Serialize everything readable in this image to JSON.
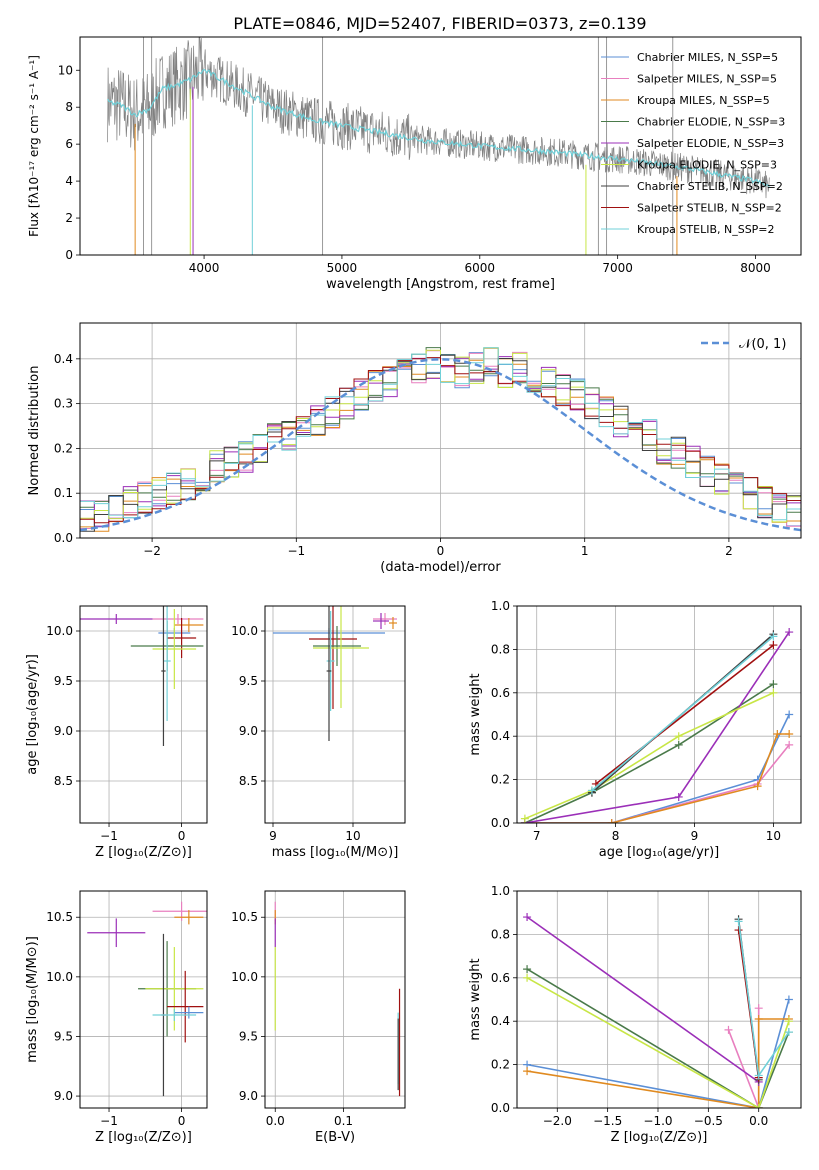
{
  "figure": {
    "title": "PLATE=0846, MJD=52407, FIBERID=0373, z=0.139"
  },
  "colors": {
    "grid": "#b0b0b0",
    "observed": "#808080",
    "model": "#70d0d8",
    "normal": "#5b8fd6"
  },
  "chart_data": [
    {
      "id": "spectrum",
      "type": "line",
      "xlabel": "wavelength [Angstrom, rest frame]",
      "ylabel": "Flux [fλ10⁻¹⁷ erg cm⁻² s⁻¹ A⁻¹]",
      "xlim": [
        3100,
        8330
      ],
      "ylim": [
        0,
        11.8
      ],
      "xticks": [
        "4000",
        "5000",
        "6000",
        "7000",
        "8000"
      ],
      "yticks": [
        "0",
        "2",
        "4",
        "6",
        "8",
        "10"
      ],
      "legend_position": "top-right",
      "series": [
        {
          "name": "Chabrier MILES, N_SSP=5",
          "color": "#5b8fd6"
        },
        {
          "name": "Salpeter MILES, N_SSP=5",
          "color": "#e87fbf"
        },
        {
          "name": "Kroupa MILES, N_SSP=5",
          "color": "#e08a20"
        },
        {
          "name": "Chabrier ELODIE, N_SSP=3",
          "color": "#4a7a4a"
        },
        {
          "name": "Salpeter ELODIE, N_SSP=3",
          "color": "#9b2fb8"
        },
        {
          "name": "Kroupa ELODIE, N_SSP=3",
          "color": "#c8e646"
        },
        {
          "name": "Chabrier STELIB, N_SSP=2",
          "color": "#404040"
        },
        {
          "name": "Salpeter STELIB, N_SSP=2",
          "color": "#a01010"
        },
        {
          "name": "Kroupa STELIB, N_SSP=2",
          "color": "#70d0d8"
        }
      ],
      "model_trend": {
        "x": [
          3300,
          3400,
          3500,
          3600,
          3700,
          3800,
          3900,
          4000,
          4100,
          4300,
          4500,
          4800,
          5000,
          5300,
          5600,
          6000,
          6500,
          7000,
          7500,
          8000,
          8100
        ],
        "y": [
          8.3,
          8.1,
          7.6,
          7.9,
          9.0,
          9.2,
          9.5,
          10.0,
          9.6,
          8.8,
          8.0,
          7.3,
          7.0,
          6.6,
          6.2,
          5.9,
          5.6,
          5.2,
          4.7,
          4.0,
          3.7
        ]
      }
    },
    {
      "id": "residuals",
      "type": "bar",
      "xlabel": "(data-model)/error",
      "ylabel": "Normed distribution",
      "xlim": [
        -2.5,
        2.5
      ],
      "ylim": [
        0,
        0.48
      ],
      "xticks": [
        "−2",
        "−1",
        "0",
        "1",
        "2"
      ],
      "yticks": [
        "0.0",
        "0.1",
        "0.2",
        "0.3",
        "0.4"
      ],
      "legend_position": "top-right",
      "legend": "𝒩(0, 1)",
      "bin_width": 0.1,
      "bins_start": -2.5,
      "histogram": [
        0.05,
        0.05,
        0.06,
        0.08,
        0.09,
        0.1,
        0.11,
        0.12,
        0.14,
        0.16,
        0.17,
        0.18,
        0.2,
        0.22,
        0.23,
        0.25,
        0.26,
        0.28,
        0.3,
        0.32,
        0.34,
        0.35,
        0.37,
        0.38,
        0.39,
        0.38,
        0.37,
        0.38,
        0.39,
        0.37,
        0.38,
        0.36,
        0.35,
        0.33,
        0.32,
        0.3,
        0.28,
        0.26,
        0.25,
        0.23,
        0.2,
        0.19,
        0.17,
        0.15,
        0.13,
        0.11,
        0.1,
        0.08,
        0.07,
        0.06
      ]
    },
    {
      "id": "age-vs-Z",
      "type": "scatter",
      "xlabel": "Z [log₁₀(Z/Z⊙)]",
      "ylabel": "age  [log₁₀(age/yr)]",
      "xlim": [
        -1.4,
        0.35
      ],
      "ylim": [
        8.08,
        10.25
      ],
      "xticks": [
        "−1",
        "0"
      ],
      "yticks": [
        "8.5",
        "9.0",
        "9.5",
        "10.0"
      ],
      "points": [
        {
          "x": -0.9,
          "y": 10.12,
          "xerr": 0.5,
          "yerr": 0.05,
          "color": "#9b2fb8"
        },
        {
          "x": -0.05,
          "y": 10.12,
          "xerr": 0.35,
          "yerr": 0.05,
          "color": "#e87fbf"
        },
        {
          "x": 0.1,
          "y": 10.06,
          "xerr": 0.2,
          "yerr": 0.07,
          "color": "#e08a20"
        },
        {
          "x": -0.1,
          "y": 9.98,
          "xerr": 0.22,
          "yerr": 0.05,
          "color": "#5b8fd6"
        },
        {
          "x": 0.0,
          "y": 9.93,
          "xerr": 0.2,
          "yerr": 0.2,
          "color": "#a01010"
        },
        {
          "x": -0.2,
          "y": 9.85,
          "xerr": 0.5,
          "yerr": 0.25,
          "color": "#4a7a4a"
        },
        {
          "x": -0.1,
          "y": 9.82,
          "xerr": 0.3,
          "yerr": 0.4,
          "color": "#c8e646"
        },
        {
          "x": -0.2,
          "y": 9.7,
          "xerr": 0.05,
          "yerr": 0.6,
          "color": "#70d0d8"
        },
        {
          "x": -0.25,
          "y": 9.6,
          "xerr": 0.03,
          "yerr": 0.75,
          "color": "#404040"
        }
      ]
    },
    {
      "id": "age-vs-mass",
      "type": "scatter",
      "xlabel": "mass [log₁₀(M/M⊙)]",
      "ylabel": "",
      "xlim": [
        8.9,
        10.65
      ],
      "ylim": [
        8.08,
        10.25
      ],
      "xticks": [
        "9",
        "10"
      ],
      "yticks": [
        "8.5",
        "9.0",
        "9.5",
        "10.0"
      ],
      "points": [
        {
          "x": 10.4,
          "y": 10.12,
          "xerr": 0.15,
          "yerr": 0.06,
          "color": "#e87fbf"
        },
        {
          "x": 10.35,
          "y": 10.1,
          "xerr": 0.1,
          "yerr": 0.08,
          "color": "#9b2fb8"
        },
        {
          "x": 10.5,
          "y": 10.08,
          "xerr": 0.05,
          "yerr": 0.06,
          "color": "#e08a20"
        },
        {
          "x": 9.7,
          "y": 9.98,
          "xerr": 0.7,
          "yerr": 0.05,
          "color": "#5b8fd6"
        },
        {
          "x": 9.75,
          "y": 9.92,
          "xerr": 0.3,
          "yerr": 0.7,
          "color": "#a01010"
        },
        {
          "x": 9.8,
          "y": 9.85,
          "xerr": 0.3,
          "yerr": 0.2,
          "color": "#4a7a4a"
        },
        {
          "x": 9.85,
          "y": 9.83,
          "xerr": 0.35,
          "yerr": 0.6,
          "color": "#c8e646"
        },
        {
          "x": 9.72,
          "y": 9.7,
          "xerr": 0.05,
          "yerr": 0.5,
          "color": "#70d0d8"
        },
        {
          "x": 9.7,
          "y": 9.6,
          "xerr": 0.03,
          "yerr": 0.7,
          "color": "#404040"
        }
      ]
    },
    {
      "id": "weight-vs-age",
      "type": "line",
      "xlabel": "age  [log₁₀(age/yr)]",
      "ylabel": "mass weight",
      "xlim": [
        6.75,
        10.35
      ],
      "ylim": [
        0,
        1
      ],
      "xticks": [
        "7",
        "8",
        "9",
        "10"
      ],
      "yticks": [
        "0.0",
        "0.2",
        "0.4",
        "0.6",
        "0.8",
        "1.0"
      ],
      "series": [
        {
          "color": "#5b8fd6",
          "x": [
            6.85,
            7.95,
            9.8,
            10.2
          ],
          "y": [
            0.0,
            0.0,
            0.2,
            0.5
          ]
        },
        {
          "color": "#e87fbf",
          "x": [
            6.85,
            7.95,
            9.8,
            10.2
          ],
          "y": [
            0.0,
            0.0,
            0.18,
            0.36
          ]
        },
        {
          "color": "#e08a20",
          "x": [
            6.85,
            7.95,
            9.8,
            10.05,
            10.2
          ],
          "y": [
            0.0,
            0.0,
            0.17,
            0.41,
            0.41
          ]
        },
        {
          "color": "#4a7a4a",
          "x": [
            6.85,
            7.7,
            8.8,
            10.0
          ],
          "y": [
            0.0,
            0.14,
            0.36,
            0.64
          ]
        },
        {
          "color": "#9b2fb8",
          "x": [
            6.85,
            8.8,
            10.2
          ],
          "y": [
            0.0,
            0.12,
            0.88
          ]
        },
        {
          "color": "#c8e646",
          "x": [
            6.85,
            7.7,
            8.8,
            10.0
          ],
          "y": [
            0.02,
            0.15,
            0.4,
            0.6
          ]
        },
        {
          "color": "#404040",
          "x": [
            7.7,
            10.0
          ],
          "y": [
            0.14,
            0.87
          ]
        },
        {
          "color": "#a01010",
          "x": [
            7.75,
            10.0
          ],
          "y": [
            0.18,
            0.82
          ]
        },
        {
          "color": "#70d0d8",
          "x": [
            7.7,
            10.0
          ],
          "y": [
            0.15,
            0.86
          ]
        }
      ]
    },
    {
      "id": "mass-vs-Z",
      "type": "scatter",
      "xlabel": "Z [log₁₀(Z/Z⊙)]",
      "ylabel": "mass [log₁₀(M/M⊙)]",
      "xlim": [
        -1.4,
        0.35
      ],
      "ylim": [
        8.9,
        10.72
      ],
      "xticks": [
        "−1",
        "0"
      ],
      "yticks": [
        "9.0",
        "9.5",
        "10.0",
        "10.5"
      ],
      "points": [
        {
          "x": 0.0,
          "y": 10.55,
          "xerr": 0.4,
          "yerr": 0.08,
          "color": "#e87fbf"
        },
        {
          "x": 0.1,
          "y": 10.5,
          "xerr": 0.2,
          "yerr": 0.06,
          "color": "#e08a20"
        },
        {
          "x": -0.9,
          "y": 10.37,
          "xerr": 0.4,
          "yerr": 0.12,
          "color": "#9b2fb8"
        },
        {
          "x": -0.2,
          "y": 9.9,
          "xerr": 0.4,
          "yerr": 0.4,
          "color": "#4a7a4a"
        },
        {
          "x": -0.1,
          "y": 9.9,
          "xerr": 0.4,
          "yerr": 0.35,
          "color": "#c8e646"
        },
        {
          "x": 0.05,
          "y": 9.75,
          "xerr": 0.25,
          "yerr": 0.3,
          "color": "#a01010"
        },
        {
          "x": 0.1,
          "y": 9.7,
          "xerr": 0.2,
          "yerr": 0.05,
          "color": "#5b8fd6"
        },
        {
          "x": -0.25,
          "y": 9.68,
          "xerr": 0.03,
          "yerr": 0.68,
          "color": "#404040"
        },
        {
          "x": -0.1,
          "y": 9.68,
          "xerr": 0.3,
          "yerr": 0.05,
          "color": "#70d0d8"
        }
      ]
    },
    {
      "id": "mass-vs-EBV",
      "type": "scatter",
      "xlabel": "E(B-V)",
      "ylabel": "",
      "xlim": [
        -0.015,
        0.19
      ],
      "ylim": [
        8.9,
        10.72
      ],
      "xticks": [
        "0.0",
        "0.1"
      ],
      "yticks": [
        "9.0",
        "9.5",
        "10.0",
        "10.5"
      ],
      "points": [
        {
          "x": 0.0,
          "y": 10.55,
          "xerr": 0.0,
          "yerr": 0.08,
          "color": "#e87fbf"
        },
        {
          "x": 0.0,
          "y": 10.5,
          "xerr": 0.0,
          "yerr": 0.06,
          "color": "#e08a20"
        },
        {
          "x": 0.0,
          "y": 10.37,
          "xerr": 0.0,
          "yerr": 0.12,
          "color": "#9b2fb8"
        },
        {
          "x": 0.0,
          "y": 9.9,
          "xerr": 0.0,
          "yerr": 0.35,
          "color": "#c8e646"
        },
        {
          "x": 0.182,
          "y": 9.45,
          "xerr": 0.0,
          "yerr": 0.45,
          "color": "#a01010"
        },
        {
          "x": 0.18,
          "y": 9.4,
          "xerr": 0.0,
          "yerr": 0.3,
          "color": "#70d0d8"
        },
        {
          "x": 0.18,
          "y": 9.35,
          "xerr": 0.0,
          "yerr": 0.3,
          "color": "#404040"
        }
      ]
    },
    {
      "id": "weight-vs-Z",
      "type": "line",
      "xlabel": "Z [log₁₀(Z/Z⊙)]",
      "ylabel": "mass weight",
      "xlim": [
        -2.4,
        0.42
      ],
      "ylim": [
        0,
        1
      ],
      "xticks": [
        "−2.0",
        "−1.5",
        "−1.0",
        "−0.5",
        "0.0"
      ],
      "yticks": [
        "0.0",
        "0.2",
        "0.4",
        "0.6",
        "0.8",
        "1.0"
      ],
      "series": [
        {
          "color": "#5b8fd6",
          "x": [
            -2.3,
            0.0,
            0.3
          ],
          "y": [
            0.2,
            0.0,
            0.5
          ]
        },
        {
          "color": "#e87fbf",
          "x": [
            -0.3,
            0.0,
            0.0
          ],
          "y": [
            0.36,
            0.0,
            0.46
          ]
        },
        {
          "color": "#e08a20",
          "x": [
            -2.3,
            0.0,
            0.0,
            0.3
          ],
          "y": [
            0.17,
            0.0,
            0.41,
            0.41
          ]
        },
        {
          "color": "#4a7a4a",
          "x": [
            -2.3,
            0.0,
            0.3
          ],
          "y": [
            0.64,
            0.0,
            0.35
          ]
        },
        {
          "color": "#9b2fb8",
          "x": [
            -2.3,
            0.0
          ],
          "y": [
            0.88,
            0.12
          ]
        },
        {
          "color": "#c8e646",
          "x": [
            -2.3,
            0.0,
            0.3
          ],
          "y": [
            0.6,
            0.0,
            0.4
          ]
        },
        {
          "color": "#404040",
          "x": [
            -0.2,
            0.0
          ],
          "y": [
            0.87,
            0.13
          ]
        },
        {
          "color": "#a01010",
          "x": [
            -0.2,
            0.0
          ],
          "y": [
            0.82,
            0.14
          ]
        },
        {
          "color": "#70d0d8",
          "x": [
            -0.2,
            0.0,
            0.3
          ],
          "y": [
            0.86,
            0.15,
            0.35
          ]
        }
      ]
    }
  ]
}
